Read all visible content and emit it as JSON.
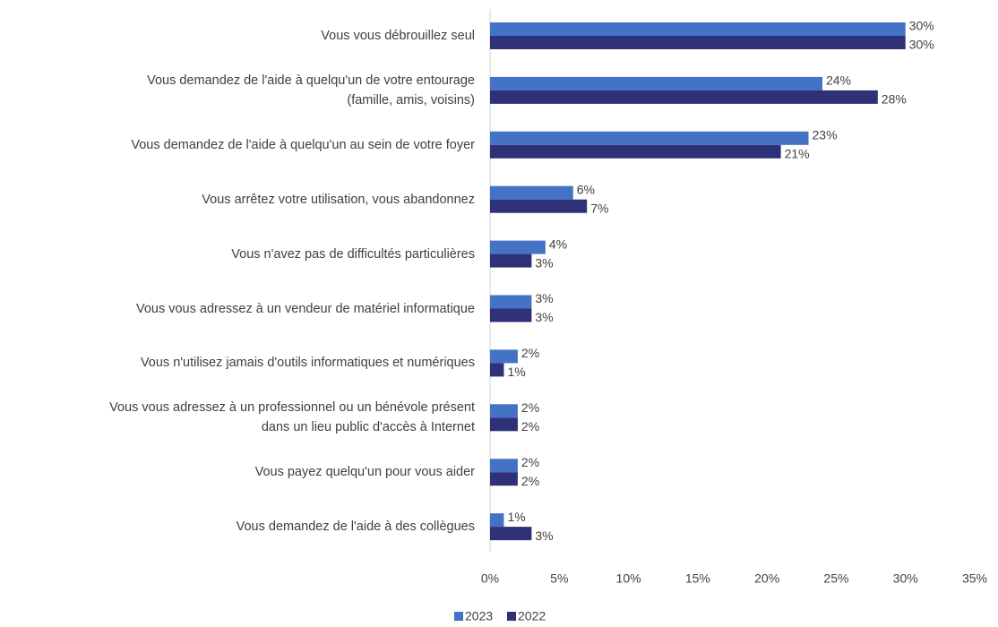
{
  "chart_data": {
    "type": "barh",
    "categories": [
      "Vous vous débrouillez seul",
      "Vous demandez de l'aide à quelqu'un de votre entourage\n(famille, amis, voisins)",
      "Vous demandez de l'aide à quelqu'un au sein de votre foyer",
      "Vous arrêtez votre utilisation, vous abandonnez",
      "Vous n'avez pas de difficultés particulières",
      "Vous vous adressez à un vendeur de matériel informatique",
      "Vous n'utilisez jamais d'outils informatiques et numériques",
      "Vous vous adressez à un professionnel ou un bénévole présent\ndans un lieu public d'accès à Internet",
      "Vous payez quelqu'un pour vous aider",
      "Vous demandez de l'aide à des collègues"
    ],
    "series": [
      {
        "name": "2023",
        "color": "#4472c4",
        "values": [
          30,
          24,
          23,
          6,
          4,
          3,
          2,
          2,
          2,
          1
        ],
        "value_labels": [
          "30%",
          "24%",
          "23%",
          "6%",
          "4%",
          "3%",
          "2%",
          "2%",
          "2%",
          "1%"
        ]
      },
      {
        "name": "2022",
        "color": "#2e3178",
        "values": [
          30,
          28,
          21,
          7,
          3,
          3,
          1,
          2,
          2,
          3
        ],
        "value_labels": [
          "30%",
          "28%",
          "21%",
          "7%",
          "3%",
          "3%",
          "1%",
          "2%",
          "2%",
          "3%"
        ]
      }
    ],
    "xlim": [
      0,
      35
    ],
    "xticks": [
      {
        "value": 0,
        "label": "0%"
      },
      {
        "value": 5,
        "label": "5%"
      },
      {
        "value": 10,
        "label": "10%"
      },
      {
        "value": 15,
        "label": "15%"
      },
      {
        "value": 20,
        "label": "20%"
      },
      {
        "value": 25,
        "label": "25%"
      },
      {
        "value": 30,
        "label": "30%"
      },
      {
        "value": 35,
        "label": "35%"
      }
    ],
    "grid": false,
    "legend": "bottom"
  }
}
